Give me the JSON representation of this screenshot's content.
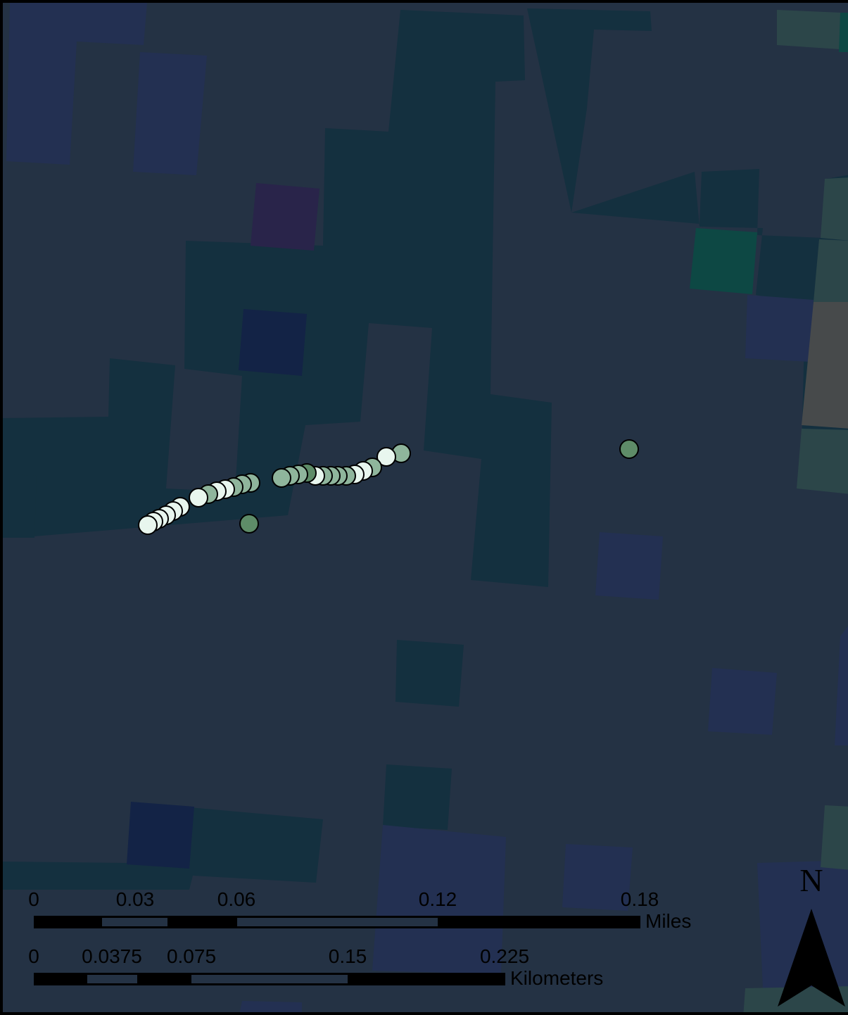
{
  "colors": {
    "background": "#243244",
    "raster_teal": "#14303f",
    "raster_blue": "#233052",
    "raster_navy": "#132346",
    "raster_purple": "#29244a",
    "raster_green": "#0d4844",
    "raster_sage": "#2c4649",
    "raster_gray": "#474a4b",
    "point_dark": "#5e8c68",
    "point_mid": "#8fb59c",
    "point_light": "#e8f6ee",
    "scalebar_black": "#000000"
  },
  "scale_bars": {
    "miles": {
      "unit_label": "Miles",
      "tick_labels": [
        "0",
        "0.03",
        "0.06",
        "0.12",
        "0.18"
      ]
    },
    "kilometers": {
      "unit_label": "Kilometers",
      "tick_labels": [
        "0",
        "0.0375",
        "0.075",
        "0.15",
        "0.225"
      ]
    }
  },
  "north_arrow": {
    "label": "N",
    "icon": "north-arrow-icon"
  }
}
